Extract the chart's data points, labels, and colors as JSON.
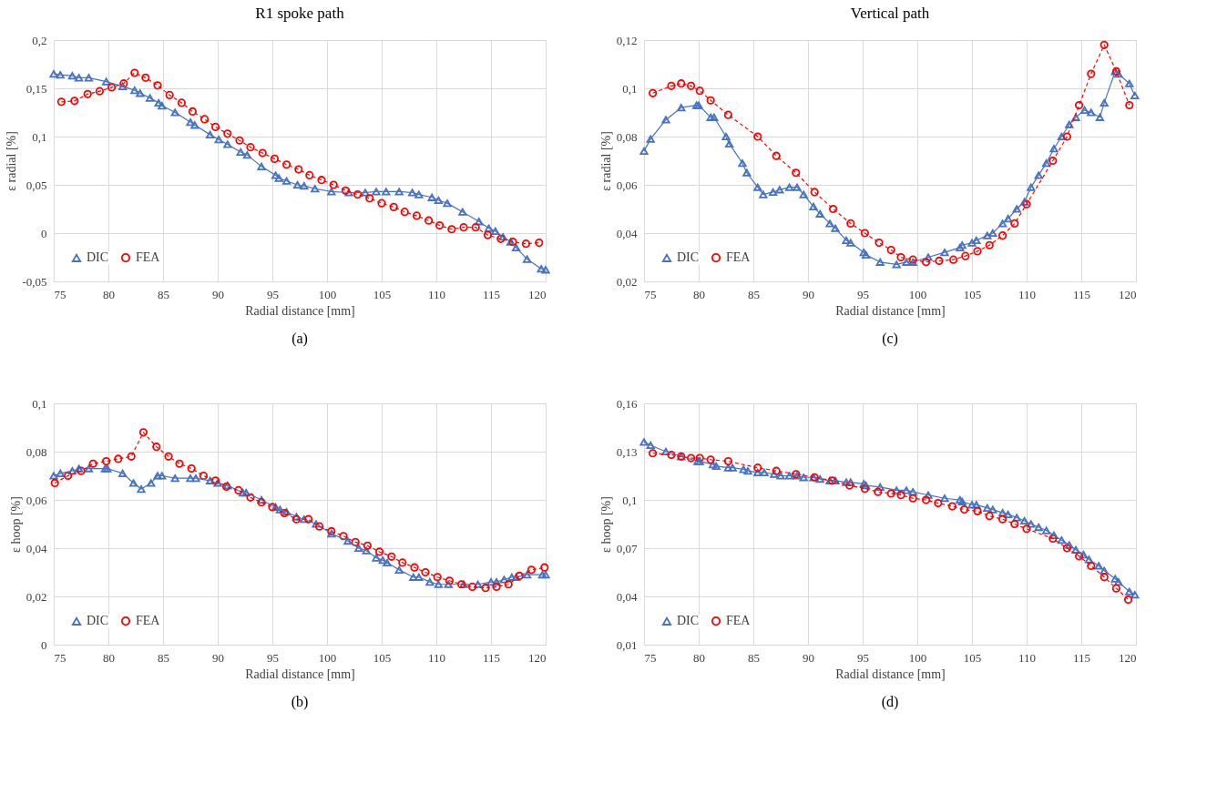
{
  "chart_data": [
    {
      "type": "line",
      "title": "R1 spoke path",
      "xlabel": "Radial distance [mm]",
      "ylabel": "ε radial [%]",
      "annotations": [
        "(a)"
      ],
      "grid": true,
      "legend": "bottom left",
      "xlim": [
        75,
        120
      ],
      "xticks": [
        75,
        80,
        85,
        90,
        95,
        100,
        105,
        110,
        115,
        120
      ],
      "ylim": [
        -0.05,
        0.2
      ],
      "yticks": [
        {
          "value": -0.05,
          "label": "-0,05"
        },
        0,
        {
          "value": 0.05,
          "label": "0,05"
        },
        {
          "value": 0.1,
          "label": "0,1"
        },
        {
          "value": 0.15,
          "label": "0,15"
        },
        {
          "value": 0.2,
          "label": "0,2"
        }
      ],
      "series": [
        {
          "name": "DIC",
          "color": "#4472c4",
          "marker": "triangle",
          "line_style": "solid",
          "x": [
            75,
            75.6,
            76.7,
            77.3,
            78.2,
            79.8,
            81.3,
            82.4,
            82.9,
            83.8,
            84.6,
            84.9,
            86.1,
            87.5,
            87.9,
            89.3,
            90.1,
            90.9,
            92.1,
            92.7,
            94.0,
            95.3,
            95.6,
            96.3,
            97.3,
            97.9,
            98.9,
            100.4,
            102,
            103.5,
            104.5,
            105.4,
            106.6,
            107.8,
            108.4,
            109.6,
            110.2,
            111,
            112.4,
            113.9,
            114.8,
            115.4,
            116.1,
            116.8,
            117.3,
            118.3,
            119.6,
            120
          ],
          "values": [
            0.165,
            0.164,
            0.163,
            0.161,
            0.161,
            0.157,
            0.152,
            0.148,
            0.145,
            0.14,
            0.135,
            0.132,
            0.125,
            0.115,
            0.112,
            0.102,
            0.097,
            0.092,
            0.084,
            0.081,
            0.069,
            0.06,
            0.057,
            0.054,
            0.05,
            0.049,
            0.046,
            0.043,
            0.042,
            0.042,
            0.043,
            0.043,
            0.043,
            0.042,
            0.04,
            0.037,
            0.034,
            0.031,
            0.022,
            0.012,
            0.005,
            0.002,
            -0.004,
            -0.009,
            -0.015,
            -0.027,
            -0.037,
            -0.038
          ]
        },
        {
          "name": "FEA",
          "color": "#ff0000",
          "marker": "circle",
          "line_style": "dashed",
          "x": [
            75.7,
            76.9,
            78.1,
            79.2,
            80.3,
            81.4,
            82.4,
            83.4,
            84.5,
            85.6,
            86.7,
            87.7,
            88.8,
            89.8,
            90.9,
            92.0,
            93.0,
            94.1,
            95.2,
            96.3,
            97.4,
            98.4,
            99.5,
            100.6,
            101.7,
            102.8,
            103.9,
            105,
            106.1,
            107.1,
            108.2,
            109.3,
            110.3,
            111.4,
            112.5,
            113.6,
            114.7,
            115.9,
            117,
            118.2,
            119.4
          ],
          "values": [
            0.136,
            0.137,
            0.144,
            0.147,
            0.151,
            0.155,
            0.166,
            0.161,
            0.153,
            0.143,
            0.135,
            0.126,
            0.118,
            0.11,
            0.103,
            0.096,
            0.089,
            0.083,
            0.077,
            0.071,
            0.066,
            0.06,
            0.055,
            0.05,
            0.044,
            0.04,
            0.036,
            0.031,
            0.027,
            0.022,
            0.018,
            0.013,
            0.008,
            0.004,
            0.006,
            0.006,
            -0.002,
            -0.006,
            -0.009,
            -0.011,
            -0.01
          ]
        }
      ]
    },
    {
      "type": "line",
      "title": "Vertical path",
      "xlabel": "Radial distance [mm]",
      "ylabel": "ε radial [%]",
      "annotations": [
        "(c)"
      ],
      "grid": true,
      "legend": "bottom left",
      "xlim": [
        75,
        120
      ],
      "xticks": [
        75,
        80,
        85,
        90,
        95,
        100,
        105,
        110,
        115,
        120
      ],
      "ylim": [
        0.02,
        0.12
      ],
      "yticks": [
        {
          "value": 0.02,
          "label": "0,02"
        },
        {
          "value": 0.04,
          "label": "0,04"
        },
        {
          "value": 0.06,
          "label": "0,06"
        },
        {
          "value": 0.08,
          "label": "0,08"
        },
        {
          "value": 0.1,
          "label": "0,1"
        },
        {
          "value": 0.12,
          "label": "0,12"
        }
      ],
      "series": [
        {
          "name": "DIC",
          "color": "#4472c4",
          "marker": "triangle",
          "line_style": "solid",
          "x": [
            75,
            75.6,
            77,
            78.4,
            79.8,
            80,
            81.1,
            81.4,
            82.5,
            82.8,
            84,
            84.4,
            85.4,
            85.9,
            86.8,
            87.4,
            88.3,
            89,
            89.6,
            90.5,
            91.1,
            92,
            92.5,
            93.5,
            93.9,
            95.1,
            95.3,
            96.6,
            98.1,
            99,
            99.6,
            101,
            102.5,
            103.9,
            104.1,
            105,
            105.4,
            106.4,
            106.9,
            107.8,
            108.3,
            109.1,
            109.8,
            110.4,
            111.1,
            111.8,
            112.5,
            113.2,
            113.9,
            114.5,
            115.3,
            115.9,
            116.7,
            117.1,
            118.1,
            118.4,
            119.4,
            119.9
          ],
          "values": [
            0.074,
            0.079,
            0.087,
            0.092,
            0.093,
            0.093,
            0.088,
            0.088,
            0.08,
            0.077,
            0.069,
            0.065,
            0.059,
            0.056,
            0.057,
            0.058,
            0.059,
            0.059,
            0.056,
            0.051,
            0.048,
            0.044,
            0.042,
            0.037,
            0.036,
            0.032,
            0.031,
            0.028,
            0.027,
            0.028,
            0.028,
            0.03,
            0.032,
            0.034,
            0.035,
            0.036,
            0.037,
            0.039,
            0.04,
            0.044,
            0.046,
            0.05,
            0.053,
            0.059,
            0.064,
            0.069,
            0.075,
            0.08,
            0.085,
            0.088,
            0.091,
            0.09,
            0.088,
            0.094,
            0.107,
            0.106,
            0.102,
            0.097
          ]
        },
        {
          "name": "FEA",
          "color": "#ff0000",
          "marker": "circle",
          "line_style": "dashed",
          "x": [
            75.8,
            77.5,
            78.4,
            79.3,
            80.1,
            81.1,
            82.7,
            85.4,
            87.1,
            88.9,
            90.6,
            92.3,
            93.9,
            95.2,
            96.5,
            97.6,
            98.5,
            99.6,
            100.8,
            102,
            103.3,
            104.4,
            105.5,
            106.6,
            107.8,
            108.9,
            110,
            112.4,
            113.7,
            114.8,
            115.9,
            117.1,
            118.2,
            119.4
          ],
          "values": [
            0.098,
            0.101,
            0.102,
            0.101,
            0.099,
            0.095,
            0.089,
            0.08,
            0.072,
            0.065,
            0.057,
            0.05,
            0.044,
            0.04,
            0.036,
            0.033,
            0.03,
            0.029,
            0.028,
            0.0285,
            0.029,
            0.0305,
            0.0325,
            0.035,
            0.039,
            0.044,
            0.052,
            0.07,
            0.08,
            0.093,
            0.106,
            0.118,
            0.107,
            0.093
          ]
        }
      ]
    },
    {
      "type": "line",
      "xlabel": "Radial distance [mm]",
      "ylabel": "ε hoop [%]",
      "annotations": [
        "(b)"
      ],
      "grid": true,
      "legend": "bottom left",
      "xlim": [
        75,
        120
      ],
      "xticks": [
        75,
        80,
        85,
        90,
        95,
        100,
        105,
        110,
        115,
        120
      ],
      "ylim": [
        0,
        0.1
      ],
      "yticks": [
        0,
        {
          "value": 0.02,
          "label": "0,02"
        },
        {
          "value": 0.04,
          "label": "0,04"
        },
        {
          "value": 0.06,
          "label": "0,06"
        },
        {
          "value": 0.08,
          "label": "0,08"
        },
        {
          "value": 0.1,
          "label": "0,1"
        }
      ],
      "series": [
        {
          "name": "DIC",
          "color": "#4472c4",
          "marker": "triangle",
          "line_style": "solid",
          "x": [
            75,
            75.6,
            76.7,
            77.3,
            78.2,
            79.7,
            79.9,
            81.3,
            82.3,
            83,
            83.9,
            84.5,
            84.9,
            86.1,
            87.5,
            88,
            89.3,
            90,
            90.9,
            92.3,
            92.6,
            94,
            95.3,
            95.7,
            96.3,
            97.2,
            97.9,
            99,
            100.4,
            101.9,
            102.9,
            103.6,
            104.5,
            105.1,
            105.5,
            106.6,
            107.9,
            108.4,
            109.4,
            110.2,
            111.1,
            112.5,
            113.8,
            115,
            115.5,
            116.2,
            116.9,
            117.3,
            118.3,
            119.7,
            120
          ],
          "values": [
            0.07,
            0.071,
            0.072,
            0.073,
            0.073,
            0.073,
            0.073,
            0.071,
            0.067,
            0.0645,
            0.067,
            0.07,
            0.07,
            0.069,
            0.069,
            0.069,
            0.068,
            0.067,
            0.066,
            0.063,
            0.063,
            0.06,
            0.057,
            0.056,
            0.055,
            0.053,
            0.052,
            0.05,
            0.046,
            0.043,
            0.04,
            0.039,
            0.036,
            0.035,
            0.034,
            0.031,
            0.028,
            0.028,
            0.026,
            0.025,
            0.025,
            0.025,
            0.025,
            0.026,
            0.026,
            0.027,
            0.028,
            0.028,
            0.029,
            0.029,
            0.029
          ]
        },
        {
          "name": "FEA",
          "color": "#ff0000",
          "marker": "circle",
          "line_style": "dashed",
          "x": [
            75.1,
            76.3,
            77.5,
            78.6,
            79.8,
            80.9,
            82.1,
            83.2,
            84.4,
            85.5,
            86.5,
            87.6,
            88.7,
            89.8,
            90.8,
            91.9,
            93,
            94.0,
            95.0,
            96.1,
            97.2,
            98.3,
            99.3,
            100.4,
            101.5,
            102.6,
            103.7,
            104.8,
            105.9,
            106.9,
            108,
            109,
            110.1,
            111.2,
            112.3,
            113.3,
            114.5,
            115.5,
            116.6,
            117.6,
            118.7,
            119.9
          ],
          "values": [
            0.067,
            0.07,
            0.072,
            0.075,
            0.076,
            0.077,
            0.078,
            0.088,
            0.082,
            0.078,
            0.075,
            0.073,
            0.07,
            0.068,
            0.0655,
            0.064,
            0.061,
            0.059,
            0.057,
            0.0545,
            0.052,
            0.052,
            0.049,
            0.047,
            0.045,
            0.0425,
            0.041,
            0.0385,
            0.0365,
            0.034,
            0.032,
            0.03,
            0.028,
            0.0265,
            0.025,
            0.024,
            0.0235,
            0.024,
            0.025,
            0.0285,
            0.031,
            0.032
          ]
        }
      ]
    },
    {
      "type": "line",
      "xlabel": "Radial distance [mm]",
      "ylabel": "ε hoop [%]",
      "annotations": [
        "(d)"
      ],
      "grid": true,
      "legend": "bottom left",
      "xlim": [
        75,
        120
      ],
      "xticks": [
        75,
        80,
        85,
        90,
        95,
        100,
        105,
        110,
        115,
        120
      ],
      "ylim": [
        0.01,
        0.16
      ],
      "yticks": [
        {
          "value": 0.01,
          "label": "0,01"
        },
        {
          "value": 0.04,
          "label": "0,04"
        },
        {
          "value": 0.07,
          "label": "0,07"
        },
        {
          "value": 0.1,
          "label": "0,1"
        },
        {
          "value": 0.13,
          "label": "0,13"
        },
        {
          "value": 0.16,
          "label": "0,16"
        }
      ],
      "series": [
        {
          "name": "DIC",
          "color": "#4472c4",
          "marker": "triangle",
          "line_style": "solid",
          "x": [
            75,
            75.6,
            77,
            78.4,
            79.9,
            80.1,
            81.3,
            81.6,
            82.7,
            83.1,
            84.1,
            84.5,
            85.4,
            86,
            86.9,
            87.5,
            88.3,
            89,
            89.6,
            90.5,
            91.1,
            92,
            92.5,
            93.5,
            93.9,
            95.1,
            95.3,
            96.6,
            98.1,
            99,
            99.6,
            101,
            102.5,
            103.9,
            104.1,
            105,
            105.4,
            106.4,
            106.9,
            107.8,
            108.3,
            109.1,
            109.8,
            110.4,
            111.1,
            111.8,
            112.5,
            113.2,
            113.9,
            114.5,
            115.2,
            115.7,
            116.6,
            117.1,
            118.1,
            118.4,
            119.4,
            119.9
          ],
          "values": [
            0.136,
            0.134,
            0.13,
            0.127,
            0.124,
            0.124,
            0.122,
            0.121,
            0.12,
            0.12,
            0.119,
            0.118,
            0.117,
            0.117,
            0.116,
            0.115,
            0.115,
            0.115,
            0.114,
            0.114,
            0.113,
            0.112,
            0.112,
            0.111,
            0.111,
            0.11,
            0.109,
            0.108,
            0.106,
            0.106,
            0.105,
            0.103,
            0.101,
            0.1,
            0.099,
            0.097,
            0.097,
            0.095,
            0.094,
            0.092,
            0.091,
            0.089,
            0.087,
            0.085,
            0.083,
            0.081,
            0.078,
            0.075,
            0.072,
            0.069,
            0.066,
            0.063,
            0.059,
            0.056,
            0.051,
            0.049,
            0.043,
            0.041
          ]
        },
        {
          "name": "FEA",
          "color": "#ff0000",
          "marker": "circle",
          "line_style": "dashed",
          "x": [
            75.8,
            77.5,
            78.4,
            79.3,
            80.1,
            81.1,
            82.7,
            85.4,
            87.1,
            88.9,
            90.6,
            92.2,
            93.8,
            95.2,
            96.4,
            97.6,
            98.5,
            99.6,
            100.8,
            101.9,
            103.2,
            104.3,
            105.5,
            106.6,
            107.8,
            108.9,
            110,
            112.4,
            113.7,
            114.8,
            115.9,
            117.1,
            118.2,
            119.3
          ],
          "values": [
            0.129,
            0.128,
            0.127,
            0.126,
            0.126,
            0.125,
            0.124,
            0.12,
            0.118,
            0.116,
            0.114,
            0.112,
            0.109,
            0.107,
            0.105,
            0.104,
            0.103,
            0.101,
            0.1,
            0.098,
            0.096,
            0.094,
            0.093,
            0.09,
            0.088,
            0.085,
            0.082,
            0.076,
            0.07,
            0.065,
            0.059,
            0.052,
            0.045,
            0.038
          ]
        }
      ]
    }
  ]
}
